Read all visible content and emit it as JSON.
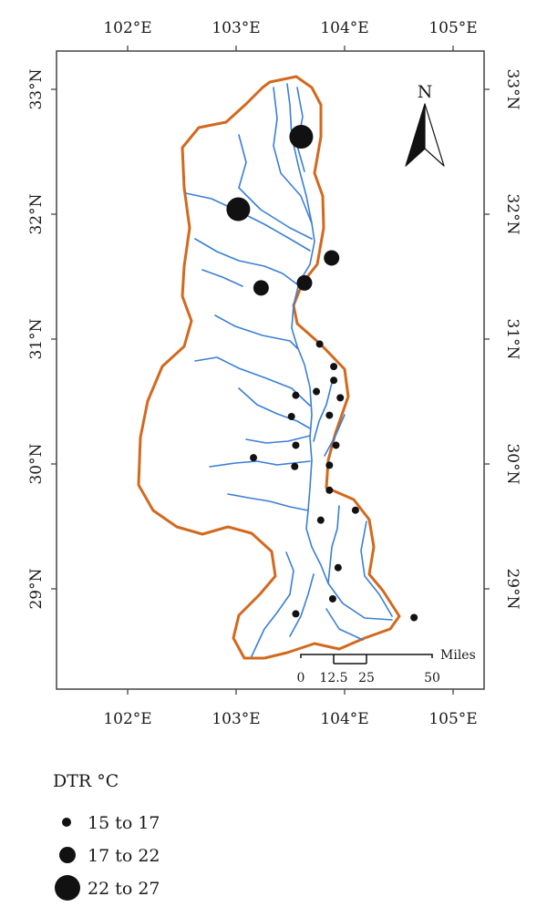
{
  "map": {
    "lon_ticks": [
      {
        "value": 102,
        "label": "102°E"
      },
      {
        "value": 103,
        "label": "103°E"
      },
      {
        "value": 104,
        "label": "104°E"
      },
      {
        "value": 105,
        "label": "105°E"
      }
    ],
    "lat_ticks": [
      {
        "value": 33,
        "label": "33°N"
      },
      {
        "value": 32,
        "label": "32°N"
      },
      {
        "value": 31,
        "label": "31°N"
      },
      {
        "value": 30,
        "label": "30°N"
      },
      {
        "value": 29,
        "label": "29°N"
      }
    ],
    "colors": {
      "boundary": "#d2691e",
      "river": "#3a7fd5",
      "station": "#111111",
      "frame": "#444444"
    },
    "north_arrow": {
      "label": "N"
    },
    "scale_bar": {
      "unit_label": "Miles",
      "tick_labels": [
        "0",
        "12.5",
        "25",
        "50"
      ]
    },
    "stations": [
      {
        "lon": 103.6,
        "lat": 32.62,
        "dtr_class": "22 to 27"
      },
      {
        "lon": 103.02,
        "lat": 32.04,
        "dtr_class": "22 to 27"
      },
      {
        "lon": 103.88,
        "lat": 31.65,
        "dtr_class": "17 to 22"
      },
      {
        "lon": 103.63,
        "lat": 31.45,
        "dtr_class": "17 to 22"
      },
      {
        "lon": 103.23,
        "lat": 31.41,
        "dtr_class": "17 to 22"
      },
      {
        "lon": 103.77,
        "lat": 30.96,
        "dtr_class": "15 to 17"
      },
      {
        "lon": 103.9,
        "lat": 30.78,
        "dtr_class": "15 to 17"
      },
      {
        "lon": 103.9,
        "lat": 30.67,
        "dtr_class": "15 to 17"
      },
      {
        "lon": 103.74,
        "lat": 30.58,
        "dtr_class": "15 to 17"
      },
      {
        "lon": 103.55,
        "lat": 30.55,
        "dtr_class": "15 to 17"
      },
      {
        "lon": 103.96,
        "lat": 30.53,
        "dtr_class": "15 to 17"
      },
      {
        "lon": 103.86,
        "lat": 30.39,
        "dtr_class": "15 to 17"
      },
      {
        "lon": 103.51,
        "lat": 30.38,
        "dtr_class": "15 to 17"
      },
      {
        "lon": 103.92,
        "lat": 30.15,
        "dtr_class": "15 to 17"
      },
      {
        "lon": 103.55,
        "lat": 30.15,
        "dtr_class": "15 to 17"
      },
      {
        "lon": 103.16,
        "lat": 30.05,
        "dtr_class": "15 to 17"
      },
      {
        "lon": 103.86,
        "lat": 29.99,
        "dtr_class": "15 to 17"
      },
      {
        "lon": 103.54,
        "lat": 29.98,
        "dtr_class": "15 to 17"
      },
      {
        "lon": 103.86,
        "lat": 29.79,
        "dtr_class": "15 to 17"
      },
      {
        "lon": 104.1,
        "lat": 29.63,
        "dtr_class": "15 to 17"
      },
      {
        "lon": 103.78,
        "lat": 29.55,
        "dtr_class": "15 to 17"
      },
      {
        "lon": 103.94,
        "lat": 29.17,
        "dtr_class": "15 to 17"
      },
      {
        "lon": 103.89,
        "lat": 28.92,
        "dtr_class": "15 to 17"
      },
      {
        "lon": 103.55,
        "lat": 28.8,
        "dtr_class": "15 to 17"
      },
      {
        "lon": 104.64,
        "lat": 28.77,
        "dtr_class": "15 to 17"
      }
    ]
  },
  "legend": {
    "title": "DTR °C",
    "items": [
      {
        "label": "15 to 17",
        "size": "small"
      },
      {
        "label": "17 to 22",
        "size": "medium"
      },
      {
        "label": "22 to 27",
        "size": "large"
      }
    ]
  }
}
